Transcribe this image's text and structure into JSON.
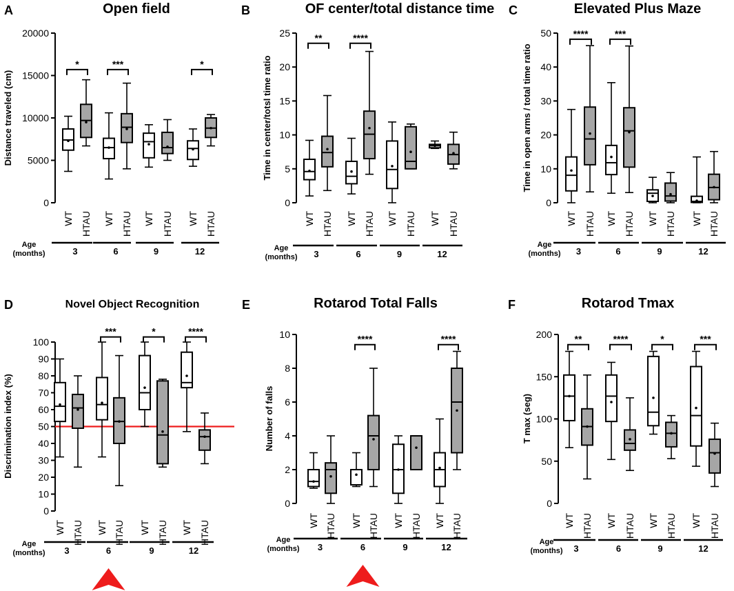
{
  "colors": {
    "box_wt": "#ffffff",
    "box_htau": "#a6a6a6",
    "ink": "#000000",
    "chance_line": "#ee1c1c",
    "arrow": "#ee1c1c"
  },
  "shared": {
    "groups": [
      "WT",
      "HTAU"
    ],
    "age_label_line1": "Age",
    "age_label_line2": "(months)",
    "ages": [
      "3",
      "6",
      "9",
      "12"
    ]
  },
  "chart_data": [
    {
      "type": "box",
      "panel": "A",
      "title": "Open field",
      "ylabel": "Distance traveled (cm)",
      "ylim": [
        0,
        20000
      ],
      "yticks": [
        0,
        5000,
        10000,
        15000,
        20000
      ],
      "series": [
        {
          "age": "3",
          "group": "WT",
          "min": 3700,
          "q1": 6200,
          "median": 7400,
          "q3": 8700,
          "max": 10200,
          "mean": 7300
        },
        {
          "age": "3",
          "group": "HTAU",
          "min": 6700,
          "q1": 7700,
          "median": 9700,
          "q3": 11600,
          "max": 14500,
          "mean": 9500
        },
        {
          "age": "6",
          "group": "WT",
          "min": 2800,
          "q1": 5200,
          "median": 6500,
          "q3": 7600,
          "max": 10600,
          "mean": 6500
        },
        {
          "age": "6",
          "group": "HTAU",
          "min": 4000,
          "q1": 7100,
          "median": 8900,
          "q3": 10500,
          "max": 14100,
          "mean": 8700
        },
        {
          "age": "9",
          "group": "WT",
          "min": 4200,
          "q1": 5300,
          "median": 7200,
          "q3": 8200,
          "max": 9200,
          "mean": 6900
        },
        {
          "age": "9",
          "group": "HTAU",
          "min": 5000,
          "q1": 5800,
          "median": 6500,
          "q3": 8300,
          "max": 9800,
          "mean": 6600
        },
        {
          "age": "12",
          "group": "WT",
          "min": 4300,
          "q1": 5100,
          "median": 6400,
          "q3": 7300,
          "max": 8700,
          "mean": 6300
        },
        {
          "age": "12",
          "group": "HTAU",
          "min": 6700,
          "q1": 7700,
          "median": 8800,
          "q3": 10000,
          "max": 10400,
          "mean": 8800
        }
      ],
      "significance": [
        {
          "age": "3",
          "label": "*",
          "y": 15700
        },
        {
          "age": "6",
          "label": "***",
          "y": 15700
        },
        {
          "age": "12",
          "label": "*",
          "y": 15700
        }
      ]
    },
    {
      "type": "box",
      "panel": "B",
      "title": "OF center/total distance time",
      "ylabel": "Time in center/totsl time ratio",
      "ylim": [
        0,
        25
      ],
      "yticks": [
        0,
        5,
        10,
        15,
        20,
        25
      ],
      "series": [
        {
          "age": "3",
          "group": "WT",
          "min": 1.0,
          "q1": 3.4,
          "median": 4.6,
          "q3": 6.4,
          "max": 9.2,
          "mean": 4.7
        },
        {
          "age": "3",
          "group": "HTAU",
          "min": 1.8,
          "q1": 5.3,
          "median": 7.4,
          "q3": 9.8,
          "max": 15.8,
          "mean": 7.9
        },
        {
          "age": "6",
          "group": "WT",
          "min": 1.3,
          "q1": 2.8,
          "median": 3.9,
          "q3": 6.1,
          "max": 9.5,
          "mean": 4.6
        },
        {
          "age": "6",
          "group": "HTAU",
          "min": 4.2,
          "q1": 6.5,
          "median": 10.1,
          "q3": 13.5,
          "max": 22.3,
          "mean": 11.0
        },
        {
          "age": "9",
          "group": "WT",
          "min": 0.0,
          "q1": 2.1,
          "median": 4.9,
          "q3": 9.1,
          "max": 11.9,
          "mean": 5.4
        },
        {
          "age": "9",
          "group": "HTAU",
          "min": 5.0,
          "q1": 5.0,
          "median": 6.1,
          "q3": 11.2,
          "max": 11.6,
          "mean": 7.5
        },
        {
          "age": "12",
          "group": "WT",
          "min": 8.0,
          "q1": 8.1,
          "median": 8.4,
          "q3": 8.6,
          "max": 9.1,
          "mean": 8.4
        },
        {
          "age": "12",
          "group": "HTAU",
          "min": 5.0,
          "q1": 5.7,
          "median": 7.1,
          "q3": 8.6,
          "max": 10.4,
          "mean": 7.3
        }
      ],
      "significance": [
        {
          "age": "3",
          "label": "**",
          "y": 23.5
        },
        {
          "age": "6",
          "label": "****",
          "y": 23.5
        }
      ]
    },
    {
      "type": "box",
      "panel": "C",
      "title": "Elevated Plus Maze",
      "ylabel": "Time in open arms / total time ratio",
      "ylim": [
        0,
        50
      ],
      "yticks": [
        0,
        10,
        20,
        30,
        40,
        50
      ],
      "series": [
        {
          "age": "3",
          "group": "WT",
          "min": 0.0,
          "q1": 3.5,
          "median": 8.1,
          "q3": 13.5,
          "max": 27.5,
          "mean": 9.5
        },
        {
          "age": "3",
          "group": "HTAU",
          "min": 3.2,
          "q1": 11.2,
          "median": 18.8,
          "q3": 28.2,
          "max": 46.3,
          "mean": 20.4
        },
        {
          "age": "6",
          "group": "WT",
          "min": 2.8,
          "q1": 8.3,
          "median": 11.8,
          "q3": 16.9,
          "max": 35.4,
          "mean": 13.5
        },
        {
          "age": "6",
          "group": "HTAU",
          "min": 3.0,
          "q1": 10.5,
          "median": 21.2,
          "q3": 28.0,
          "max": 46.2,
          "mean": 20.8
        },
        {
          "age": "9",
          "group": "WT",
          "min": 0.0,
          "q1": 0.4,
          "median": 2.8,
          "q3": 3.8,
          "max": 7.5,
          "mean": 2.0
        },
        {
          "age": "9",
          "group": "HTAU",
          "min": 0.0,
          "q1": 0.5,
          "median": 2.0,
          "q3": 5.8,
          "max": 8.9,
          "mean": 2.5
        },
        {
          "age": "12",
          "group": "WT",
          "min": 0.0,
          "q1": 0.1,
          "median": 0.4,
          "q3": 1.9,
          "max": 13.5,
          "mean": 0.6
        },
        {
          "age": "12",
          "group": "HTAU",
          "min": 0.0,
          "q1": 0.9,
          "median": 4.5,
          "q3": 8.4,
          "max": 15.1,
          "mean": 4.6
        }
      ],
      "significance": [
        {
          "age": "3",
          "label": "****",
          "y": 48.2
        },
        {
          "age": "6",
          "label": "***",
          "y": 48.2
        }
      ]
    },
    {
      "type": "box",
      "panel": "D",
      "title": "Novel Object Recognition",
      "ylabel": "Discrimination index (%)",
      "ylim": [
        0,
        100
      ],
      "yticks": [
        0,
        10,
        20,
        30,
        40,
        50,
        60,
        70,
        80,
        90,
        100
      ],
      "reference_line": 50,
      "series": [
        {
          "age": "3",
          "group": "WT",
          "min": 32,
          "q1": 53,
          "median": 62,
          "q3": 76,
          "max": 90,
          "mean": 63
        },
        {
          "age": "3",
          "group": "HTAU",
          "min": 26,
          "q1": 49,
          "median": 61,
          "q3": 69,
          "max": 80,
          "mean": 60
        },
        {
          "age": "6",
          "group": "WT",
          "min": 32,
          "q1": 54,
          "median": 63,
          "q3": 79,
          "max": 100,
          "mean": 64
        },
        {
          "age": "6",
          "group": "HTAU",
          "min": 15,
          "q1": 40,
          "median": 53,
          "q3": 67,
          "max": 92,
          "mean": 53
        },
        {
          "age": "9",
          "group": "WT",
          "min": 50,
          "q1": 60,
          "median": 70,
          "q3": 92,
          "max": 100,
          "mean": 73
        },
        {
          "age": "9",
          "group": "HTAU",
          "min": 26,
          "q1": 28,
          "median": 45,
          "q3": 77,
          "max": 78,
          "mean": 47
        },
        {
          "age": "12",
          "group": "WT",
          "min": 47,
          "q1": 73,
          "median": 76,
          "q3": 94,
          "max": 100,
          "mean": 80
        },
        {
          "age": "12",
          "group": "HTAU",
          "min": 28,
          "q1": 36,
          "median": 44,
          "q3": 48,
          "max": 58,
          "mean": 44
        }
      ],
      "significance": [
        {
          "age": "6",
          "label": "***",
          "y": 103
        },
        {
          "age": "9",
          "label": "*",
          "y": 103
        },
        {
          "age": "12",
          "label": "****",
          "y": 103
        }
      ],
      "highlight_age": "6"
    },
    {
      "type": "box",
      "panel": "E",
      "title": "Rotarod Total Falls",
      "ylabel": "Number of falls",
      "ylim": [
        0,
        10
      ],
      "yticks": [
        0,
        2,
        4,
        6,
        8,
        10
      ],
      "series": [
        {
          "age": "3",
          "group": "WT",
          "min": 0.9,
          "q1": 1.0,
          "median": 1.3,
          "q3": 2.0,
          "max": 3.0,
          "mean": 1.3
        },
        {
          "age": "3",
          "group": "HTAU",
          "min": 0.0,
          "q1": 0.6,
          "median": 2.0,
          "q3": 2.4,
          "max": 4.0,
          "mean": 1.6
        },
        {
          "age": "6",
          "group": "WT",
          "min": 1.0,
          "q1": 1.1,
          "median": 2.0,
          "q3": 2.0,
          "max": 3.0,
          "mean": 1.7
        },
        {
          "age": "6",
          "group": "HTAU",
          "min": 1.0,
          "q1": 2.0,
          "median": 4.0,
          "q3": 5.2,
          "max": 8.0,
          "mean": 3.8
        },
        {
          "age": "9",
          "group": "WT",
          "min": 0.0,
          "q1": 0.6,
          "median": 2.0,
          "q3": 3.5,
          "max": 4.0,
          "mean": 2.0
        },
        {
          "age": "9",
          "group": "HTAU",
          "min": 2.0,
          "q1": 2.0,
          "median": 4.0,
          "q3": 4.0,
          "max": 4.0,
          "mean": 3.3
        },
        {
          "age": "12",
          "group": "WT",
          "min": 0.0,
          "q1": 1.0,
          "median": 2.0,
          "q3": 3.0,
          "max": 5.0,
          "mean": 2.1
        },
        {
          "age": "12",
          "group": "HTAU",
          "min": 2.0,
          "q1": 3.0,
          "median": 6.0,
          "q3": 8.0,
          "max": 9.0,
          "mean": 5.5
        }
      ],
      "significance": [
        {
          "age": "6",
          "label": "****",
          "y": 9.4
        },
        {
          "age": "12",
          "label": "****",
          "y": 9.4
        }
      ],
      "highlight_age": "6"
    },
    {
      "type": "box",
      "panel": "F",
      "title": "Rotarod Tmax",
      "ylabel": "T max (seg)",
      "ylim": [
        0,
        200
      ],
      "yticks": [
        0,
        50,
        100,
        150,
        200
      ],
      "series": [
        {
          "age": "3",
          "group": "WT",
          "min": 66,
          "q1": 98,
          "median": 127,
          "q3": 152,
          "max": 180,
          "mean": 127
        },
        {
          "age": "3",
          "group": "HTAU",
          "min": 29,
          "q1": 69,
          "median": 91,
          "q3": 112,
          "max": 152,
          "mean": 91
        },
        {
          "age": "6",
          "group": "WT",
          "min": 52,
          "q1": 97,
          "median": 127,
          "q3": 152,
          "max": 167,
          "mean": 120
        },
        {
          "age": "6",
          "group": "HTAU",
          "min": 39,
          "q1": 63,
          "median": 71,
          "q3": 87,
          "max": 125,
          "mean": 76
        },
        {
          "age": "9",
          "group": "WT",
          "min": 82,
          "q1": 92,
          "median": 108,
          "q3": 174,
          "max": 180,
          "mean": 125
        },
        {
          "age": "9",
          "group": "HTAU",
          "min": 53,
          "q1": 67,
          "median": 83,
          "q3": 96,
          "max": 104,
          "mean": 83
        },
        {
          "age": "12",
          "group": "WT",
          "min": 44,
          "q1": 68,
          "median": 104,
          "q3": 162,
          "max": 180,
          "mean": 113
        },
        {
          "age": "12",
          "group": "HTAU",
          "min": 20,
          "q1": 36,
          "median": 60,
          "q3": 76,
          "max": 95,
          "mean": 59
        }
      ],
      "significance": [
        {
          "age": "3",
          "label": "**",
          "y": 188
        },
        {
          "age": "6",
          "label": "****",
          "y": 188
        },
        {
          "age": "9",
          "label": "*",
          "y": 188
        },
        {
          "age": "12",
          "label": "***",
          "y": 188
        }
      ]
    }
  ]
}
